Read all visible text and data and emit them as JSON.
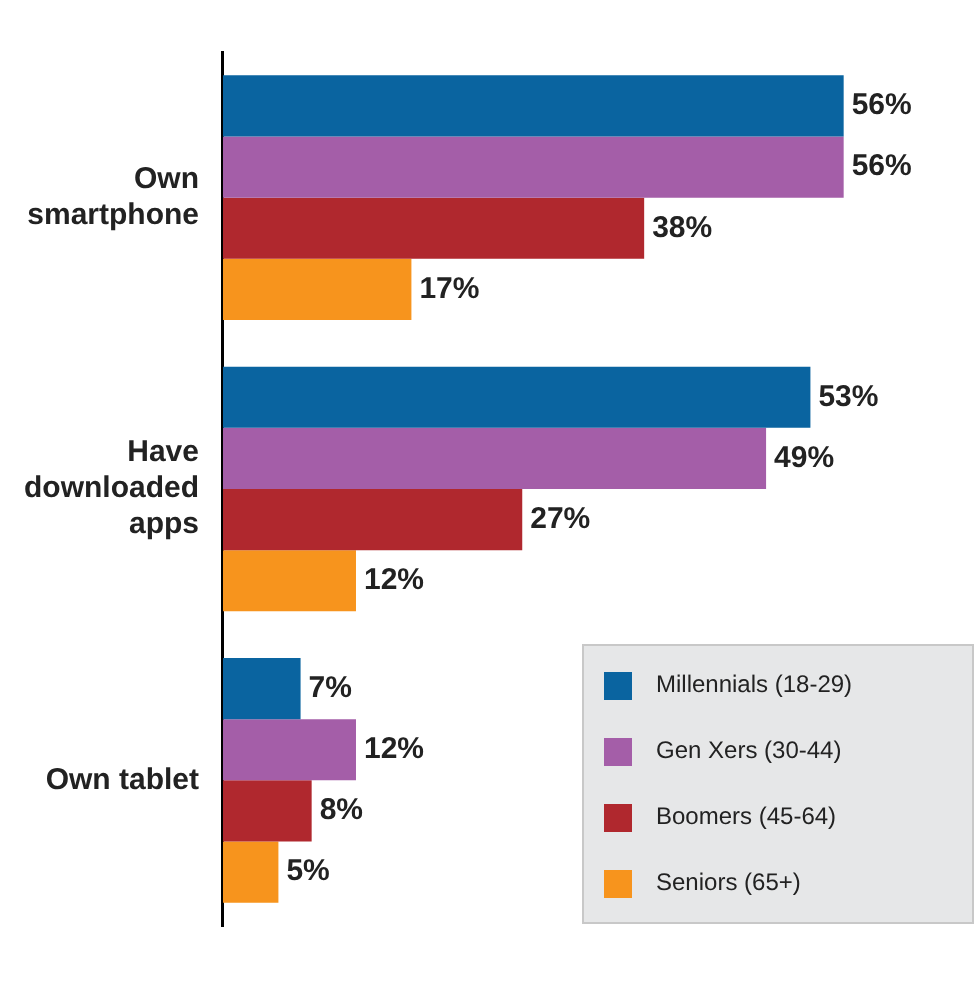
{
  "chart_data": {
    "type": "bar",
    "orientation": "horizontal",
    "categories": [
      "Own smartphone",
      "Have downloaded apps",
      "Own tablet"
    ],
    "series": [
      {
        "name": "Millennials (18-29)",
        "color": "#0a64a0",
        "values": [
          56,
          53,
          7
        ],
        "value_labels": [
          "56%",
          "53%",
          "7%"
        ]
      },
      {
        "name": "Gen Xers (30-44)",
        "color": "#a45ea8",
        "values": [
          56,
          49,
          12
        ],
        "value_labels": [
          "56%",
          "49%",
          "12%"
        ]
      },
      {
        "name": "Boomers (45-64)",
        "color": "#b0282e",
        "values": [
          38,
          27,
          8
        ],
        "value_labels": [
          "38%",
          "27%",
          "8%"
        ]
      },
      {
        "name": "Seniors (65+)",
        "color": "#f7941d",
        "values": [
          17,
          12,
          5
        ],
        "value_labels": [
          "17%",
          "12%",
          "5%"
        ]
      }
    ],
    "tick_labels": "y",
    "legend": "bottom right"
  }
}
